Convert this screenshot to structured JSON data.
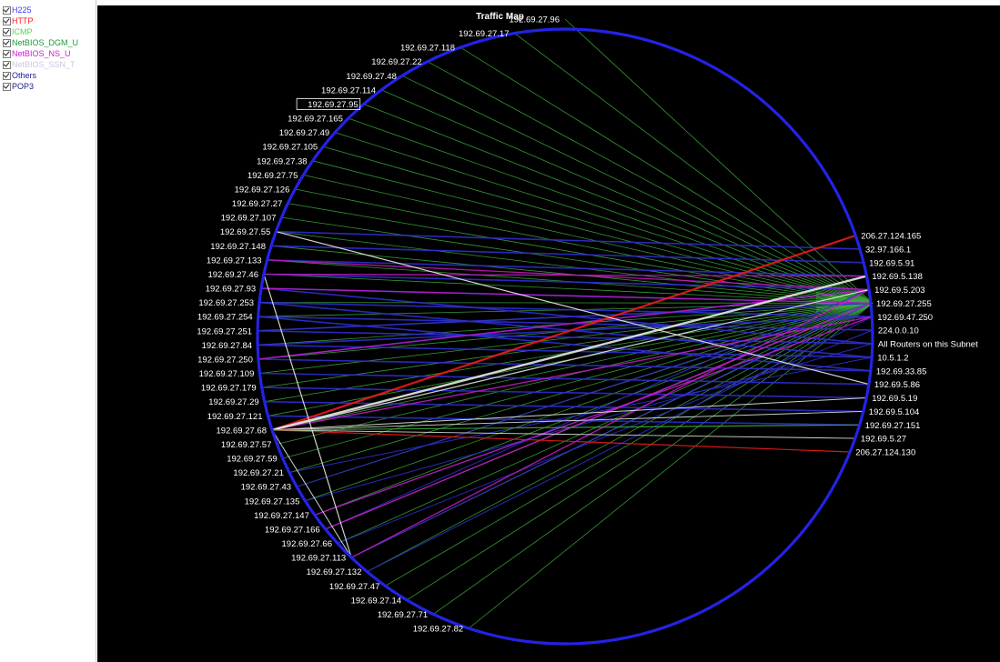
{
  "legend": {
    "items": [
      {
        "label": "H225",
        "color": "#3a3aff",
        "checked": true
      },
      {
        "label": "HTTP",
        "color": "#ff1a1a",
        "checked": true
      },
      {
        "label": "ICMP",
        "color": "#4fd84f",
        "checked": true
      },
      {
        "label": "NetBIOS_DGM_U",
        "color": "#1a9a3a",
        "checked": true
      },
      {
        "label": "NetBIOS_NS_U",
        "color": "#d21ad2",
        "checked": true
      },
      {
        "label": "NetBIOS_SSN_T",
        "color": "#c8c8e0",
        "checked": true
      },
      {
        "label": "Others",
        "color": "#2020a0",
        "checked": true
      },
      {
        "label": "POP3",
        "color": "#1a1a80",
        "checked": true
      }
    ]
  },
  "map": {
    "title": "Traffic Map",
    "colors": {
      "background": "#000000",
      "circle": "#2323e6",
      "label": "#ffffff",
      "netbios_dgm": "#3aa83a",
      "h225": "#2d2dd2",
      "http": "#ee1a1a",
      "netbios_ns": "#c21ac2",
      "ssn": "#e6ece0"
    },
    "left_nodes": [
      "192.69.27.96",
      "192.69.27.17",
      "192.69.27.118",
      "192.69.27.22",
      "192.69.27.48",
      "192.69.27.114",
      "192.69.27.95",
      "192.69.27.165",
      "192.69.27.49",
      "192.69.27.105",
      "192.69.27.38",
      "192.69.27.75",
      "192.69.27.126",
      "192.69.27.27",
      "192.69.27.107",
      "192.69.27.55",
      "192.69.27.148",
      "192.69.27.133",
      "192.69.27.46",
      "192.69.27.93",
      "192.69.27.253",
      "192.69.27.254",
      "192.69.27.251",
      "192.69.27.84",
      "192.69.27.250",
      "192.69.27.109",
      "192.69.27.179",
      "192.69.27.29",
      "192.69.27.121",
      "192.69.27.68",
      "192.69.27.57",
      "192.69.27.59",
      "192.69.27.21",
      "192.69.27.43",
      "192.69.27.135",
      "192.69.27.147",
      "192.69.27.166",
      "192.69.27.66",
      "192.69.27.113",
      "192.69.27.132",
      "192.69.27.47",
      "192.69.27.14",
      "192.69.27.71",
      "192.69.27.82"
    ],
    "selected_node": "192.69.27.95",
    "right_nodes": [
      "206.27.124.165",
      "32.97.166.1",
      "192.69.5.91",
      "192.69.5.138",
      "192.69.5.203",
      "192.69.27.255",
      "192.69.47.250",
      "224.0.0.10",
      "All Routers on this Subnet",
      "10.5.1.2",
      "192.69.33.85",
      "192.69.5.86",
      "192.69.5.19",
      "192.69.5.104",
      "192.69.27.151",
      "192.69.5.27",
      "206.27.124.130"
    ]
  }
}
